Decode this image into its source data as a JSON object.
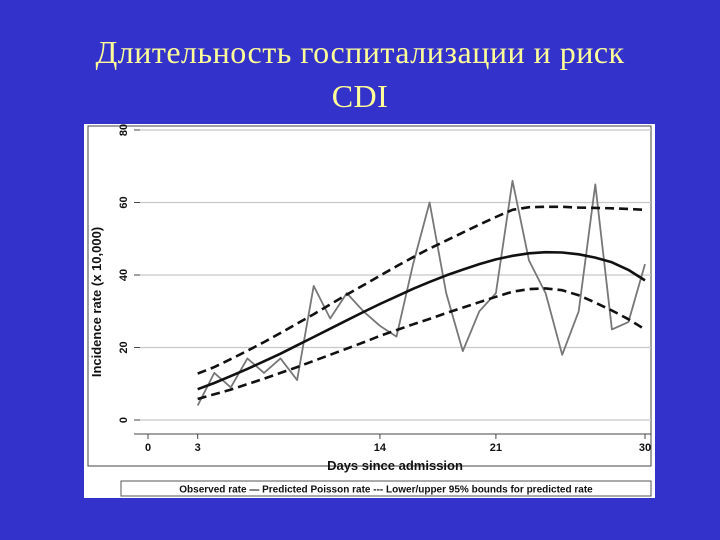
{
  "slide": {
    "title_line1": "Длительность  госпитализации  и  риск",
    "title_line2": "CDI",
    "title_color": "#ffff99",
    "background_color": "#3333cc"
  },
  "chart_data": {
    "type": "line",
    "title": "",
    "xlabel": "Days since admission",
    "ylabel": "Incidence rate (x 10,000)",
    "xlim": [
      0,
      30
    ],
    "ylim": [
      0,
      80
    ],
    "x_ticks": [
      0,
      3,
      14,
      21,
      30
    ],
    "y_ticks": [
      0,
      20,
      40,
      60,
      80
    ],
    "grid": true,
    "legend_position": "bottom",
    "legend_text": "Observed rate — Predicted Poisson rate --- Lower/upper 95% bounds for predicted rate",
    "x": [
      3,
      4,
      5,
      6,
      7,
      8,
      9,
      10,
      11,
      12,
      13,
      14,
      15,
      16,
      17,
      18,
      19,
      20,
      21,
      22,
      23,
      24,
      25,
      26,
      27,
      28,
      29,
      30
    ],
    "series": [
      {
        "name": "Observed rate",
        "style": "thin",
        "values": [
          4,
          13,
          9,
          17,
          13,
          17,
          11,
          37,
          28,
          35,
          30,
          26,
          23,
          43,
          60,
          35,
          19,
          30,
          35,
          66,
          44,
          35,
          18,
          30,
          65,
          25,
          27,
          43
        ]
      },
      {
        "name": "Predicted Poisson rate",
        "style": "solid",
        "values": [
          8.5,
          10.2,
          12.1,
          14.1,
          16.2,
          18.3,
          20.6,
          22.9,
          25.2,
          27.5,
          29.8,
          32.0,
          34.1,
          36.2,
          38.1,
          39.9,
          41.5,
          43.0,
          44.3,
          45.3,
          46.0,
          46.3,
          46.2,
          45.7,
          44.8,
          43.5,
          41.4,
          38.5
        ]
      },
      {
        "name": "Lower 95% bound",
        "style": "dashed",
        "values": [
          5.8,
          7.1,
          8.4,
          9.9,
          11.4,
          13.0,
          14.6,
          16.3,
          18.0,
          19.7,
          21.4,
          23.2,
          24.8,
          26.4,
          27.9,
          29.5,
          31.0,
          32.5,
          34.0,
          35.4,
          36.1,
          36.3,
          35.8,
          34.4,
          32.4,
          30.2,
          27.8,
          25.0
        ]
      },
      {
        "name": "Upper 95% bound",
        "style": "dashed",
        "values": [
          12.8,
          14.6,
          16.8,
          19.1,
          21.5,
          24.0,
          26.6,
          29.2,
          31.9,
          34.6,
          37.2,
          39.8,
          42.4,
          44.9,
          47.3,
          49.5,
          51.7,
          53.9,
          56.0,
          58.0,
          58.7,
          58.8,
          58.8,
          58.6,
          58.5,
          58.4,
          58.2,
          58.0
        ]
      }
    ]
  }
}
